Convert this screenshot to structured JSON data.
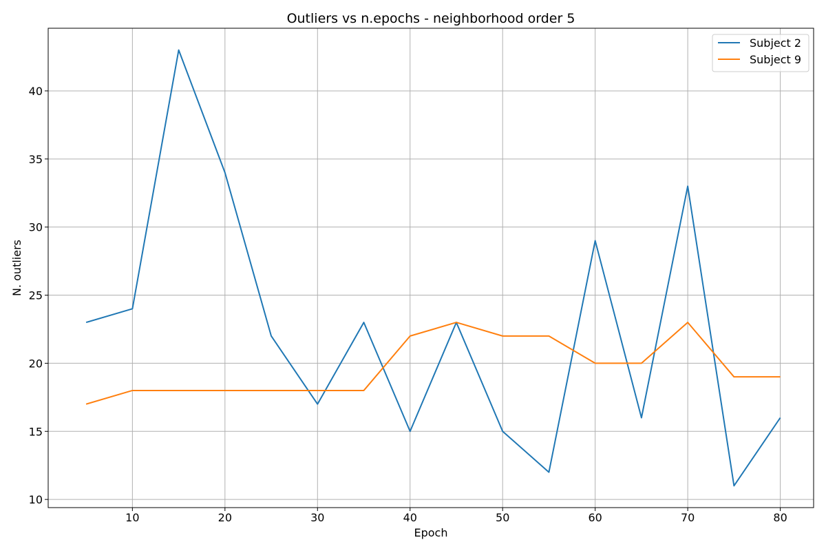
{
  "chart_data": {
    "type": "line",
    "title": "Outliers vs n.epochs - neighborhood order 5",
    "xlabel": "Epoch",
    "ylabel": "N. outliers",
    "x": [
      5,
      10,
      15,
      20,
      25,
      30,
      35,
      40,
      45,
      50,
      55,
      60,
      65,
      70,
      75,
      80
    ],
    "xlim": [
      0.9,
      83.6
    ],
    "ylim": [
      9.4,
      44.6
    ],
    "xticks": [
      10,
      20,
      30,
      40,
      50,
      60,
      70,
      80
    ],
    "yticks": [
      10,
      15,
      20,
      25,
      30,
      35,
      40
    ],
    "grid": true,
    "legend": "top-right",
    "series": [
      {
        "name": "Subject 2",
        "color": "#1f77b4",
        "values": [
          23,
          24,
          43,
          34,
          22,
          17,
          23,
          15,
          23,
          15,
          12,
          29,
          16,
          33,
          11,
          16
        ]
      },
      {
        "name": "Subject 9",
        "color": "#ff7f0e",
        "values": [
          17,
          18,
          18,
          18,
          18,
          18,
          18,
          22,
          23,
          22,
          22,
          20,
          20,
          23,
          19,
          19
        ]
      }
    ]
  }
}
